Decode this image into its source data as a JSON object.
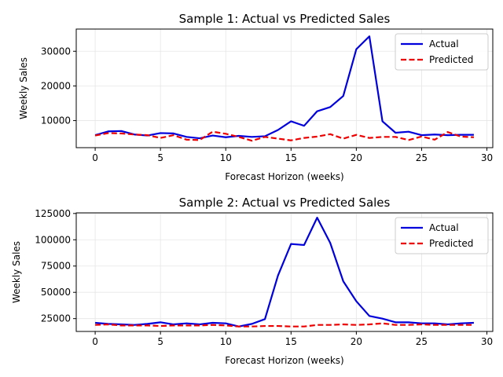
{
  "chart_data": [
    {
      "type": "line",
      "title": "Sample 1: Actual vs Predicted Sales",
      "xlabel": "Forecast Horizon (weeks)",
      "ylabel": "Weekly Sales",
      "xlim": [
        -1.45,
        30.45
      ],
      "ylim": [
        2200,
        36400
      ],
      "xticks": [
        0,
        5,
        10,
        15,
        20,
        25,
        30
      ],
      "yticks": [
        10000,
        20000,
        30000
      ],
      "grid": true,
      "legend": "top-right",
      "x": [
        0,
        1,
        2,
        3,
        4,
        5,
        6,
        7,
        8,
        9,
        10,
        11,
        12,
        13,
        14,
        15,
        16,
        17,
        18,
        19,
        20,
        21,
        22,
        23,
        24,
        25,
        26,
        27,
        28,
        29
      ],
      "series": [
        {
          "name": "Actual",
          "color": "#0000dd",
          "style": "solid",
          "values": [
            5800,
            6900,
            7000,
            6000,
            5700,
            6400,
            6300,
            5300,
            4900,
            5700,
            5200,
            5600,
            5300,
            5500,
            7300,
            9800,
            8500,
            12700,
            13900,
            17100,
            30600,
            34300,
            9800,
            6500,
            6800,
            5800,
            6000,
            5800,
            5900,
            5900
          ]
        },
        {
          "name": "Predicted",
          "color": "#ee0000",
          "style": "dashed",
          "values": [
            5700,
            6400,
            6300,
            6000,
            5800,
            5000,
            5800,
            4500,
            4400,
            6800,
            6200,
            5300,
            4200,
            5300,
            4800,
            4300,
            5000,
            5400,
            6100,
            4800,
            5900,
            5000,
            5300,
            5300,
            4400,
            5400,
            4500,
            6700,
            5400,
            5200
          ]
        }
      ]
    },
    {
      "type": "line",
      "title": "Sample 2: Actual vs Predicted Sales",
      "xlabel": "Forecast Horizon (weeks)",
      "ylabel": "Weekly Sales",
      "xlim": [
        -1.45,
        30.45
      ],
      "ylim": [
        12800,
        125600
      ],
      "xticks": [
        0,
        5,
        10,
        15,
        20,
        25,
        30
      ],
      "yticks": [
        25000,
        50000,
        75000,
        100000,
        125000
      ],
      "grid": true,
      "legend": "top-right",
      "x": [
        0,
        1,
        2,
        3,
        4,
        5,
        6,
        7,
        8,
        9,
        10,
        11,
        12,
        13,
        14,
        15,
        16,
        17,
        18,
        19,
        20,
        21,
        22,
        23,
        24,
        25,
        26,
        27,
        28,
        29
      ],
      "series": [
        {
          "name": "Actual",
          "color": "#0000dd",
          "style": "solid",
          "values": [
            21000,
            20000,
            19500,
            19000,
            20000,
            21500,
            19500,
            20500,
            19500,
            21000,
            20500,
            17500,
            20000,
            24500,
            66000,
            96000,
            95000,
            121000,
            97000,
            60500,
            41500,
            27500,
            25000,
            21500,
            21500,
            20500,
            20500,
            19500,
            20500,
            21000
          ]
        },
        {
          "name": "Predicted",
          "color": "#ee0000",
          "style": "dashed",
          "values": [
            19000,
            19500,
            18500,
            18500,
            18500,
            18000,
            18500,
            18500,
            18500,
            19000,
            18500,
            17500,
            17500,
            18000,
            18000,
            17500,
            17500,
            19000,
            19000,
            19500,
            19000,
            19500,
            20500,
            19000,
            19000,
            19500,
            19000,
            19000,
            19000,
            19000
          ]
        }
      ]
    }
  ]
}
